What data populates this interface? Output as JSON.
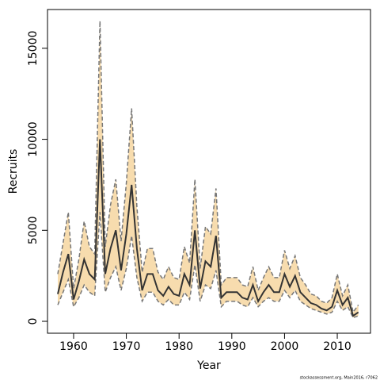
{
  "chart_data": {
    "type": "line",
    "xlabel": "Year",
    "ylabel": "Recruits",
    "footnote": "stockassessment.org, Main2016, r7062",
    "x": [
      1957,
      1958,
      1959,
      1960,
      1961,
      1962,
      1963,
      1964,
      1965,
      1966,
      1967,
      1968,
      1969,
      1970,
      1971,
      1972,
      1973,
      1974,
      1975,
      1976,
      1977,
      1978,
      1979,
      1980,
      1981,
      1982,
      1983,
      1984,
      1985,
      1986,
      1987,
      1988,
      1989,
      1990,
      1991,
      1992,
      1993,
      1994,
      1995,
      1996,
      1997,
      1998,
      1999,
      2000,
      2001,
      2002,
      2003,
      2004,
      2005,
      2006,
      2007,
      2008,
      2009,
      2010,
      2011,
      2012,
      2013,
      2014
    ],
    "values": [
      1500,
      2700,
      3700,
      1200,
      2200,
      3400,
      2600,
      2300,
      10000,
      2600,
      4000,
      5000,
      2800,
      4800,
      7500,
      4000,
      1700,
      2600,
      2600,
      1700,
      1400,
      1900,
      1500,
      1400,
      2600,
      2000,
      5000,
      1800,
      3300,
      3000,
      4700,
      1300,
      1600,
      1600,
      1600,
      1300,
      1200,
      2000,
      1100,
      1600,
      2000,
      1600,
      1600,
      2600,
      1900,
      2500,
      1600,
      1300,
      1000,
      900,
      700,
      600,
      800,
      1700,
      900,
      1300,
      300,
      500
    ],
    "lower": [
      900,
      1600,
      2300,
      800,
      1300,
      2000,
      1600,
      1400,
      6000,
      1600,
      2400,
      3000,
      1700,
      2900,
      4700,
      2400,
      1100,
      1600,
      1600,
      1100,
      900,
      1200,
      900,
      900,
      1600,
      1200,
      3100,
      1100,
      2000,
      1800,
      2800,
      800,
      1100,
      1100,
      1100,
      900,
      800,
      1300,
      800,
      1100,
      1300,
      1100,
      1100,
      1700,
      1300,
      1700,
      1100,
      900,
      700,
      600,
      500,
      400,
      500,
      1100,
      600,
      800,
      200,
      300
    ],
    "upper": [
      2600,
      4300,
      6000,
      1800,
      3400,
      5500,
      4100,
      3700,
      16500,
      4100,
      6400,
      7800,
      4400,
      7600,
      11700,
      6300,
      2700,
      4000,
      4000,
      2700,
      2300,
      3000,
      2400,
      2300,
      4100,
      3200,
      7800,
      2900,
      5200,
      4800,
      7300,
      2000,
      2400,
      2400,
      2400,
      2000,
      1900,
      3000,
      1700,
      2400,
      3000,
      2400,
      2400,
      3900,
      2900,
      3600,
      2400,
      2000,
      1500,
      1400,
      1100,
      1000,
      1300,
      2600,
      1400,
      2000,
      500,
      900
    ],
    "color": "#333333",
    "band_color": "#f7dcae",
    "bound_color": "#777777",
    "xlim": [
      1955.05,
      2016.3
    ],
    "xticks": [
      1960,
      1970,
      1980,
      1990,
      2000,
      2010
    ],
    "ylim": [
      -654,
      17130
    ],
    "yticks": [
      0,
      5000,
      10000,
      15000
    ]
  }
}
